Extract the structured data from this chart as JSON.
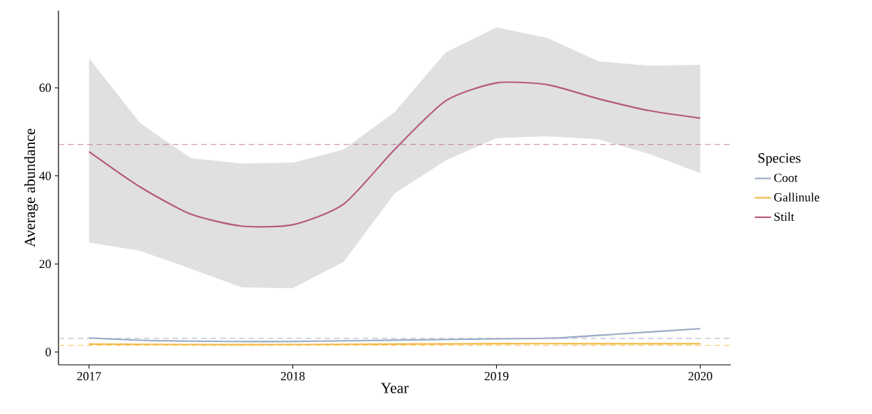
{
  "chart_data": {
    "type": "line",
    "xlabel": "Year",
    "ylabel": "Average abundance",
    "legend_title": "Species",
    "xlim": [
      2016.85,
      2020.15
    ],
    "ylim": [
      -2.9,
      77.5
    ],
    "xticks": [
      2017,
      2018,
      2019,
      2020
    ],
    "yticks": [
      0,
      20,
      40,
      60
    ],
    "grid": false,
    "legend": "right",
    "line_style": "solid",
    "marker": "none",
    "series": [
      {
        "name": "Coot",
        "color": "#9aaac4",
        "x": [
          2017,
          2017.3,
          2017.7,
          2018,
          2018.5,
          2019,
          2019.3,
          2019.6,
          2020
        ],
        "values": [
          3.2,
          2.6,
          2.4,
          2.4,
          2.7,
          3.0,
          3.2,
          4.1,
          5.3
        ]
      },
      {
        "name": "Gallinule",
        "color": "#f4b942",
        "x": [
          2017,
          2017.5,
          2018,
          2018.5,
          2019,
          2019.5,
          2020
        ],
        "values": [
          1.8,
          1.7,
          1.7,
          1.8,
          1.9,
          1.9,
          1.9
        ]
      },
      {
        "name": "Stilt",
        "color": "#b5587f",
        "x": [
          2017,
          2017.25,
          2017.5,
          2017.75,
          2018,
          2018.25,
          2018.5,
          2018.75,
          2019,
          2019.25,
          2019.5,
          2019.75,
          2020
        ],
        "values": [
          45.5,
          37.5,
          31.3,
          28.6,
          28.9,
          33.6,
          46,
          57,
          61.1,
          60.7,
          57.5,
          54.8,
          53.1
        ],
        "upper": [
          66.7,
          52,
          44,
          42.8,
          43,
          46,
          54.5,
          68,
          73.7,
          71.3,
          66,
          65,
          65.2
        ],
        "lower": [
          24.9,
          23,
          18.9,
          14.7,
          14.5,
          20.5,
          36,
          43.5,
          48.6,
          49,
          48.3,
          45,
          40.6
        ]
      }
    ],
    "ref_lines": [
      {
        "axis": "y",
        "value": 3.1,
        "color": "#9aaac4",
        "line_style": "dashed"
      },
      {
        "axis": "y",
        "value": 1.5,
        "color": "#f4b942",
        "line_style": "dashed"
      },
      {
        "axis": "y",
        "value": 47.1,
        "color": "#b5587f",
        "line_style": "dashed"
      }
    ]
  }
}
